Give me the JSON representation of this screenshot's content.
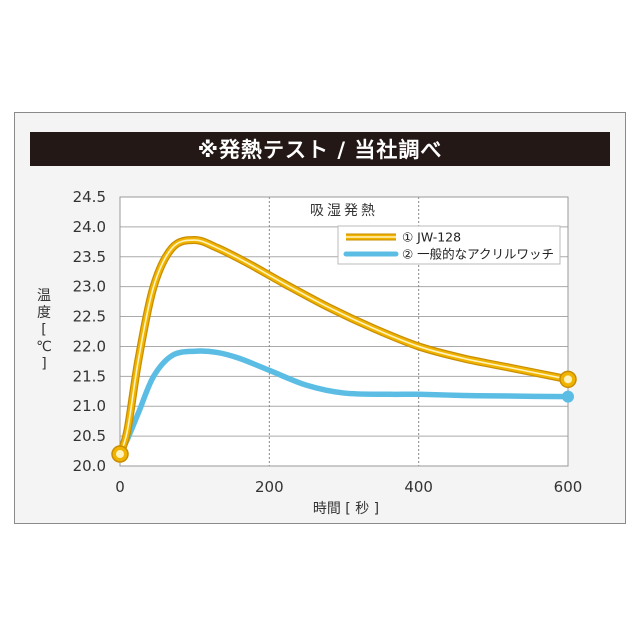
{
  "banner": {
    "title": "※発熱テスト / 当社調べ"
  },
  "chart_data": {
    "type": "line",
    "xlabel": "時間 [ 秒 ]",
    "ylabel": "温度[℃]",
    "annotation": "吸湿発熱",
    "xlim": [
      0,
      600
    ],
    "ylim": [
      20.0,
      24.5
    ],
    "xticks": [
      0,
      200,
      400,
      600
    ],
    "yticks": [
      20.0,
      20.5,
      21.0,
      21.5,
      22.0,
      22.5,
      23.0,
      23.5,
      24.0,
      24.5
    ],
    "xtick_labels": [
      "0",
      "200",
      "400",
      "600"
    ],
    "ytick_labels": [
      "20.0",
      "20.5",
      "21.0",
      "21.5",
      "22.0",
      "22.5",
      "23.0",
      "23.5",
      "24.0",
      "24.5"
    ],
    "vertical_dotted_lines_at": [
      200,
      400
    ],
    "grid": "horizontal",
    "legend_position": "top-right",
    "series": [
      {
        "name": "① JW-128",
        "color": "#f0b400",
        "x": [
          0,
          10,
          25,
          45,
          70,
          100,
          130,
          170,
          220,
          280,
          340,
          400,
          460,
          520,
          600
        ],
        "values": [
          20.2,
          20.6,
          21.8,
          23.0,
          23.65,
          23.78,
          23.65,
          23.4,
          23.05,
          22.65,
          22.3,
          22.0,
          21.8,
          21.65,
          21.45
        ]
      },
      {
        "name": "② 一般的なアクリルワッチ",
        "color": "#5bbde4",
        "x": [
          0,
          10,
          25,
          45,
          70,
          100,
          130,
          160,
          200,
          250,
          300,
          360,
          400,
          460,
          520,
          600
        ],
        "values": [
          20.2,
          20.45,
          20.9,
          21.5,
          21.85,
          21.92,
          21.9,
          21.8,
          21.6,
          21.35,
          21.22,
          21.2,
          21.2,
          21.18,
          21.17,
          21.16
        ]
      }
    ]
  }
}
